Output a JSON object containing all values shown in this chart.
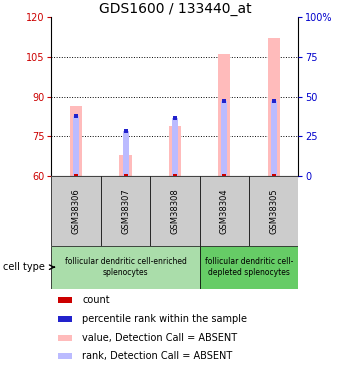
{
  "title": "GDS1600 / 133440_at",
  "samples": [
    "GSM38306",
    "GSM38307",
    "GSM38308",
    "GSM38304",
    "GSM38305"
  ],
  "ylim_left": [
    60,
    120
  ],
  "ylim_right": [
    0,
    100
  ],
  "yticks_left": [
    60,
    75,
    90,
    105,
    120
  ],
  "yticks_right": [
    0,
    25,
    50,
    75,
    100
  ],
  "ytick_labels_right": [
    "0",
    "25",
    "50",
    "75",
    "100%"
  ],
  "value_bars": [
    86.5,
    68.0,
    79.0,
    106.0,
    112.0
  ],
  "rank_bars": [
    82.5,
    77.0,
    82.0,
    88.5,
    88.5
  ],
  "bar_bottom": 60,
  "value_bar_color": "#ffbbbb",
  "rank_bar_color": "#bbbbff",
  "count_color": "#cc0000",
  "rank_dot_color": "#2222cc",
  "value_bar_width": 0.25,
  "rank_bar_width": 0.12,
  "cell_type_groups": [
    {
      "label": "follicular dendritic cell-enriched\nsplenocytes",
      "start": 0,
      "end": 3,
      "color": "#aaddaa"
    },
    {
      "label": "follicular dendritic cell-\ndepleted splenocytes",
      "start": 3,
      "end": 5,
      "color": "#66cc66"
    }
  ],
  "cell_type_label": "cell type",
  "legend_items": [
    {
      "color": "#cc0000",
      "label": "count"
    },
    {
      "color": "#2222cc",
      "label": "percentile rank within the sample"
    },
    {
      "color": "#ffbbbb",
      "label": "value, Detection Call = ABSENT"
    },
    {
      "color": "#bbbbff",
      "label": "rank, Detection Call = ABSENT"
    }
  ],
  "grid_color": "#000000",
  "left_axis_color": "#cc0000",
  "right_axis_color": "#0000cc",
  "sample_box_color": "#cccccc",
  "title_fontsize": 10,
  "tick_fontsize": 7,
  "sample_fontsize": 6,
  "celltype_fontsize": 5.5,
  "legend_fontsize": 7
}
